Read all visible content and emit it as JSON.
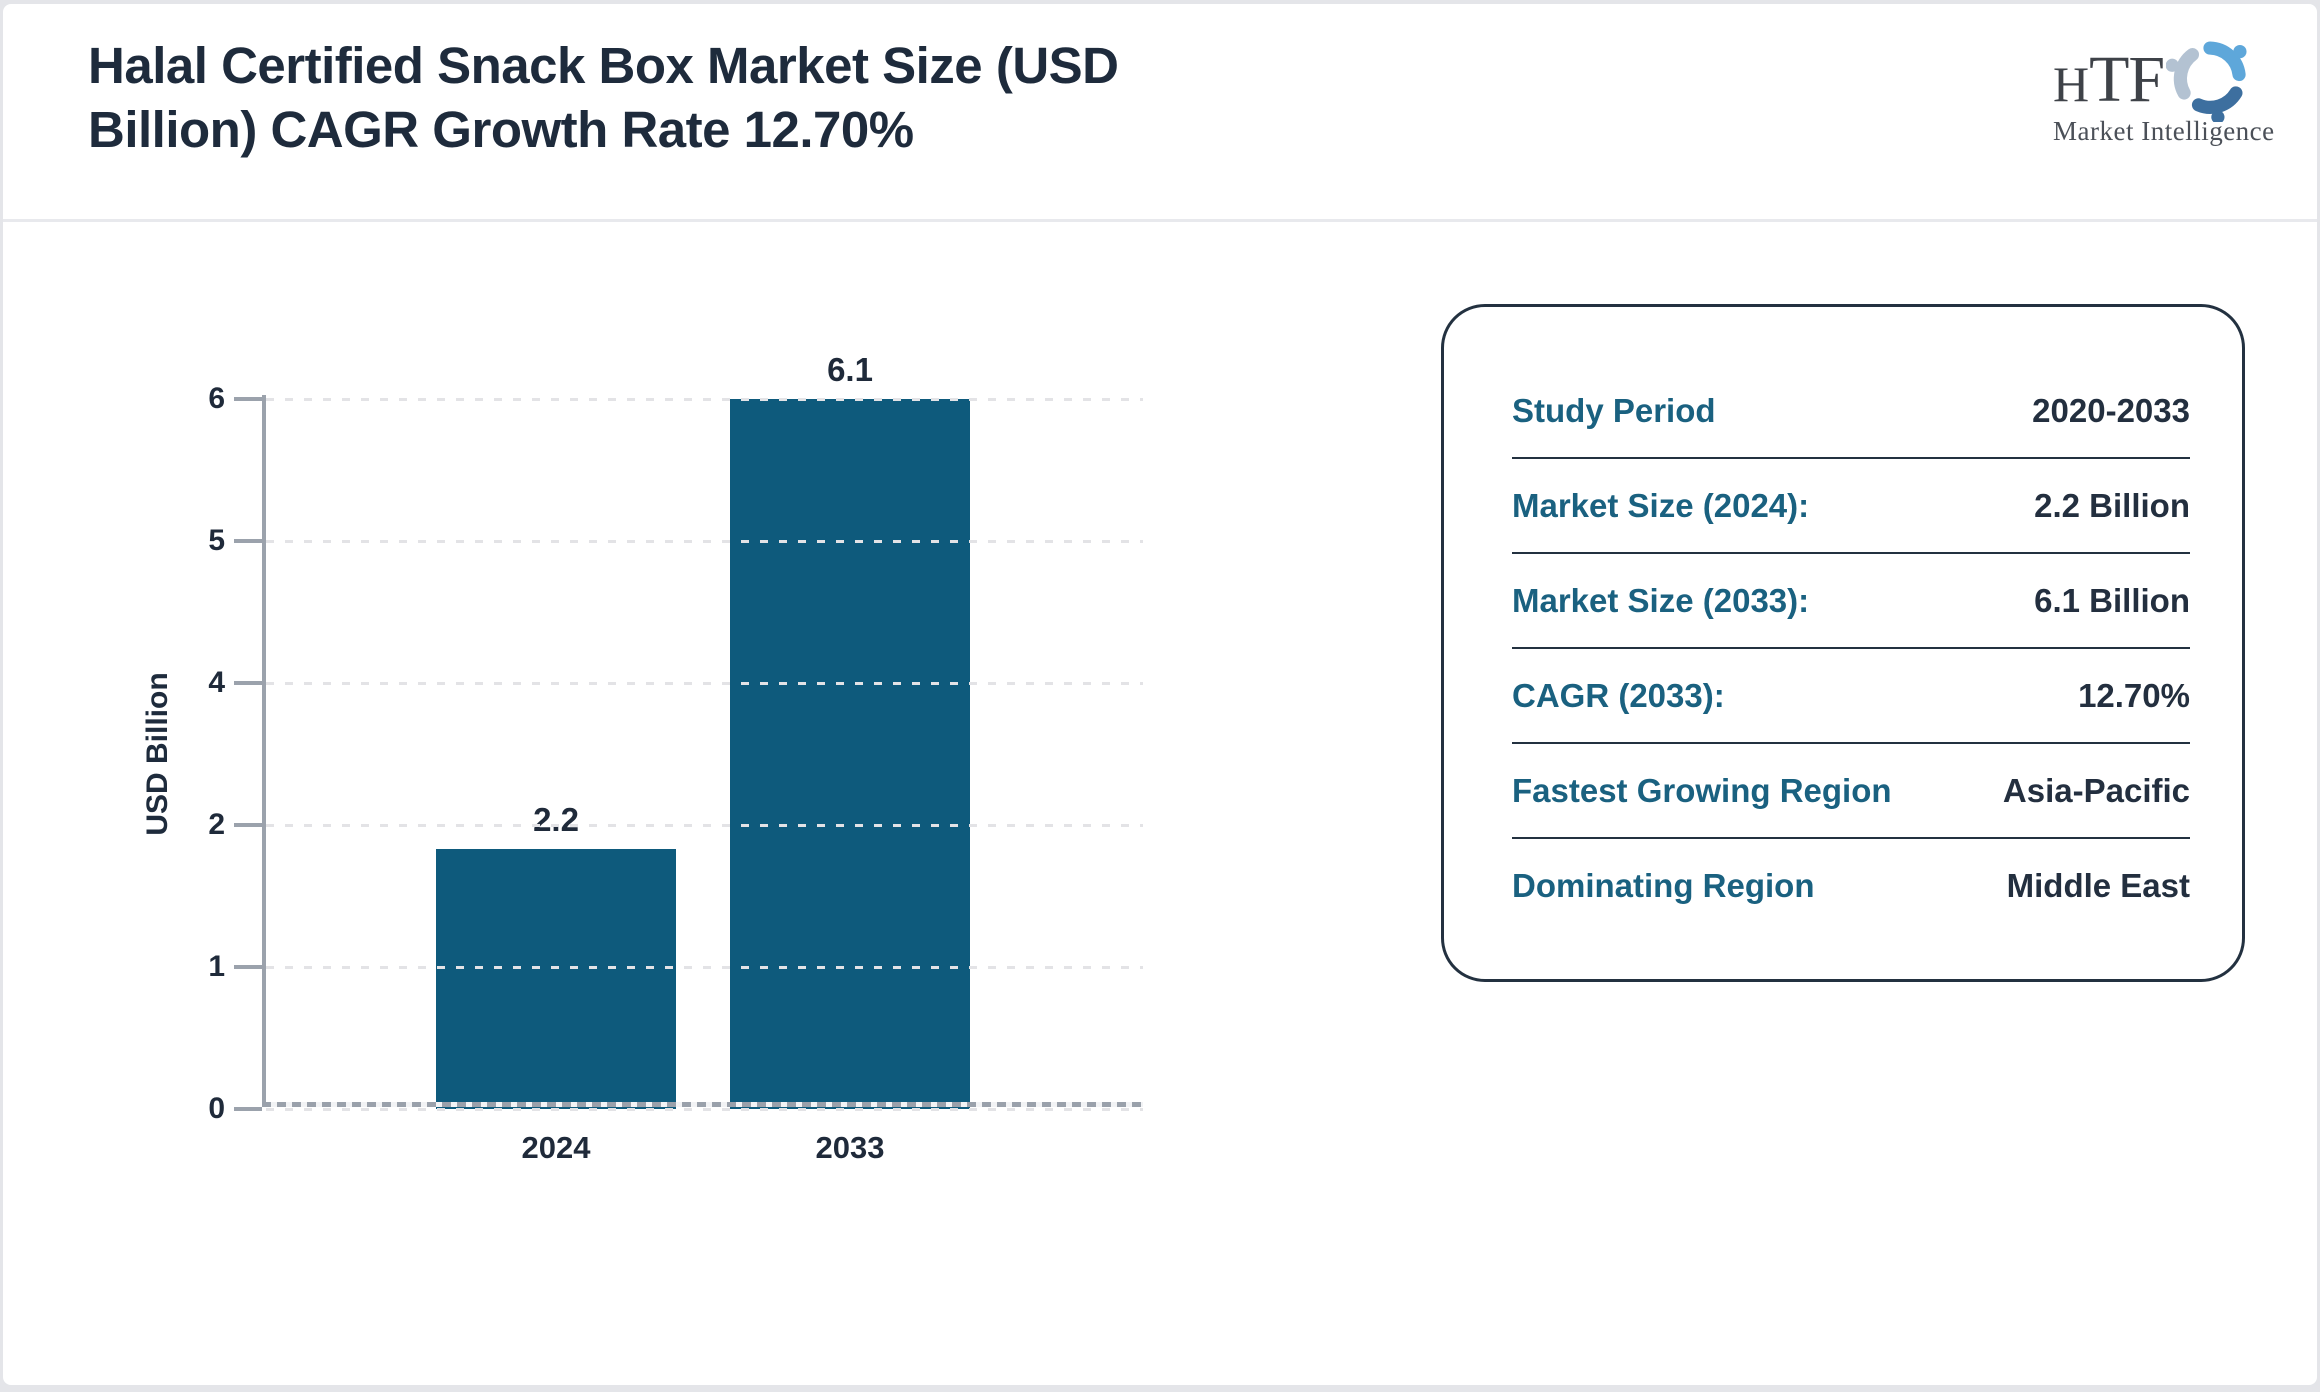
{
  "header": {
    "title_line1": "Halal Certified Snack Box Market Size (USD",
    "title_line2": "Billion) CAGR Growth Rate 12.70%"
  },
  "logo": {
    "h": "H",
    "tf": "TF",
    "subtext": "Market Intelligence",
    "colors": {
      "light_blue": "#5ea7da",
      "steel_blue": "#3d6f9f",
      "gray_blue": "#b3c2d2",
      "text": "#3e4248"
    }
  },
  "chart_data": {
    "type": "bar",
    "title": "Halal Certified Snack Box Market Size (USD Billion) CAGR Growth Rate 12.70%",
    "categories": [
      "2024",
      "2033"
    ],
    "values": [
      2.2,
      6.1
    ],
    "bar_value_labels": [
      "2.2",
      "6.1"
    ],
    "xlabel": "",
    "ylabel": "USD Billion",
    "ylim": [
      0,
      6
    ],
    "ytick_labels_top_to_bottom": [
      "6",
      "5",
      "4",
      "2",
      "1",
      "0"
    ],
    "grid": "horizontal dashed, gridline drawn over bars",
    "legend": "none",
    "bar_color": "#0e5a7c"
  },
  "info_card": {
    "rows": [
      {
        "label": "Study Period",
        "value": "2020-2033"
      },
      {
        "label": "Market Size (2024):",
        "value": "2.2 Billion"
      },
      {
        "label": "Market Size (2033):",
        "value": "6.1 Billion"
      },
      {
        "label": "CAGR (2033):",
        "value": "12.70%"
      },
      {
        "label": "Fastest Growing Region",
        "value": "Asia-Pacific"
      },
      {
        "label": "Dominating Region",
        "value": "Middle East"
      }
    ],
    "label_color": "#1a6180",
    "value_color": "#232f3f"
  }
}
